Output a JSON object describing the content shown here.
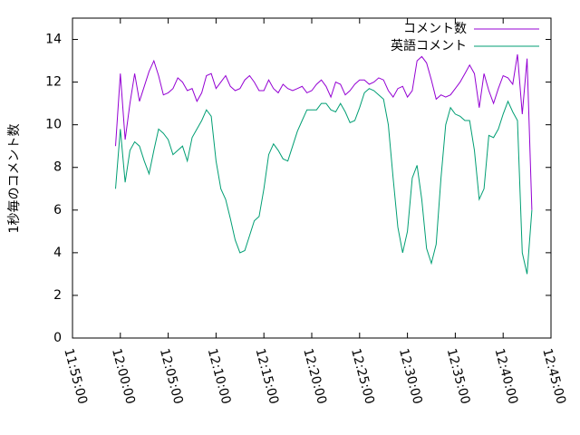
{
  "chart_data": {
    "type": "line",
    "y_label": "1秒毎のコメント数",
    "x": [
      "11:59:30",
      "12:00:00",
      "12:00:30",
      "12:01:00",
      "12:01:30",
      "12:02:00",
      "12:02:30",
      "12:03:00",
      "12:03:30",
      "12:04:00",
      "12:04:30",
      "12:05:00",
      "12:05:30",
      "12:06:00",
      "12:06:30",
      "12:07:00",
      "12:07:30",
      "12:08:00",
      "12:08:30",
      "12:09:00",
      "12:09:30",
      "12:10:00",
      "12:10:30",
      "12:11:00",
      "12:11:30",
      "12:12:00",
      "12:12:30",
      "12:13:00",
      "12:13:30",
      "12:14:00",
      "12:14:30",
      "12:15:00",
      "12:15:30",
      "12:16:00",
      "12:16:30",
      "12:17:00",
      "12:17:30",
      "12:18:00",
      "12:18:30",
      "12:19:00",
      "12:19:30",
      "12:20:00",
      "12:20:30",
      "12:21:00",
      "12:21:30",
      "12:22:00",
      "12:22:30",
      "12:23:00",
      "12:23:30",
      "12:24:00",
      "12:24:30",
      "12:25:00",
      "12:25:30",
      "12:26:00",
      "12:26:30",
      "12:27:00",
      "12:27:30",
      "12:28:00",
      "12:28:30",
      "12:29:00",
      "12:29:30",
      "12:30:00",
      "12:30:30",
      "12:31:00",
      "12:31:30",
      "12:32:00",
      "12:32:30",
      "12:33:00",
      "12:33:30",
      "12:34:00",
      "12:34:30",
      "12:35:00",
      "12:35:30",
      "12:36:00",
      "12:36:30",
      "12:37:00",
      "12:37:30",
      "12:38:00",
      "12:38:30",
      "12:39:00",
      "12:39:30",
      "12:40:00",
      "12:40:30",
      "12:41:00",
      "12:41:30",
      "12:42:00",
      "12:42:30",
      "12:43:00"
    ],
    "series": [
      {
        "name": "コメント数",
        "color": "#9400d3",
        "values": [
          9.0,
          12.4,
          9.3,
          11.0,
          12.4,
          11.1,
          11.8,
          12.5,
          13.0,
          12.3,
          11.4,
          11.5,
          11.7,
          12.2,
          12.0,
          11.6,
          11.7,
          11.1,
          11.5,
          12.3,
          12.4,
          11.7,
          12.0,
          12.3,
          11.8,
          11.6,
          11.7,
          12.1,
          12.3,
          12.0,
          11.6,
          11.6,
          12.1,
          11.7,
          11.5,
          11.9,
          11.7,
          11.6,
          11.7,
          11.8,
          11.5,
          11.6,
          11.9,
          12.1,
          11.8,
          11.3,
          12.0,
          11.9,
          11.4,
          11.6,
          11.9,
          12.1,
          12.1,
          11.9,
          12.0,
          12.2,
          12.1,
          11.6,
          11.3,
          11.7,
          11.8,
          11.3,
          11.6,
          13.0,
          13.2,
          12.9,
          12.1,
          11.2,
          11.4,
          11.3,
          11.4,
          11.7,
          12.0,
          12.4,
          12.8,
          12.4,
          10.8,
          12.4,
          11.6,
          11.0,
          11.7,
          12.3,
          12.2,
          11.9,
          13.3,
          10.5,
          13.1,
          6.0
        ]
      },
      {
        "name": "英語コメント",
        "color": "#009e73",
        "values": [
          7.0,
          9.8,
          7.3,
          8.8,
          9.2,
          9.0,
          8.3,
          7.7,
          8.8,
          9.8,
          9.6,
          9.3,
          8.6,
          8.8,
          9.0,
          8.3,
          9.4,
          9.8,
          10.2,
          10.7,
          10.4,
          8.3,
          7.0,
          6.5,
          5.6,
          4.6,
          4.0,
          4.1,
          4.8,
          5.5,
          5.7,
          7.0,
          8.6,
          9.1,
          8.8,
          8.4,
          8.3,
          9.0,
          9.7,
          10.2,
          10.7,
          10.7,
          10.7,
          11.0,
          11.0,
          10.7,
          10.6,
          11.0,
          10.6,
          10.1,
          10.2,
          10.8,
          11.5,
          11.7,
          11.6,
          11.4,
          11.2,
          10.0,
          7.5,
          5.2,
          4.0,
          5.0,
          7.5,
          8.1,
          6.5,
          4.2,
          3.5,
          4.4,
          7.5,
          10.0,
          10.8,
          10.5,
          10.4,
          10.2,
          10.2,
          8.8,
          6.5,
          7.0,
          9.5,
          9.4,
          9.8,
          10.5,
          11.1,
          10.6,
          10.2,
          4.0,
          3.0,
          6.0
        ]
      }
    ],
    "xlim": [
      "11:55:00",
      "12:45:00"
    ],
    "xticks": [
      "11:55:00",
      "12:00:00",
      "12:05:00",
      "12:10:00",
      "12:15:00",
      "12:20:00",
      "12:25:00",
      "12:30:00",
      "12:35:00",
      "12:40:00",
      "12:45:00"
    ],
    "ylim": [
      0,
      15
    ],
    "yticks": [
      0,
      2,
      4,
      6,
      8,
      10,
      12,
      14
    ],
    "legend": "top-right"
  }
}
